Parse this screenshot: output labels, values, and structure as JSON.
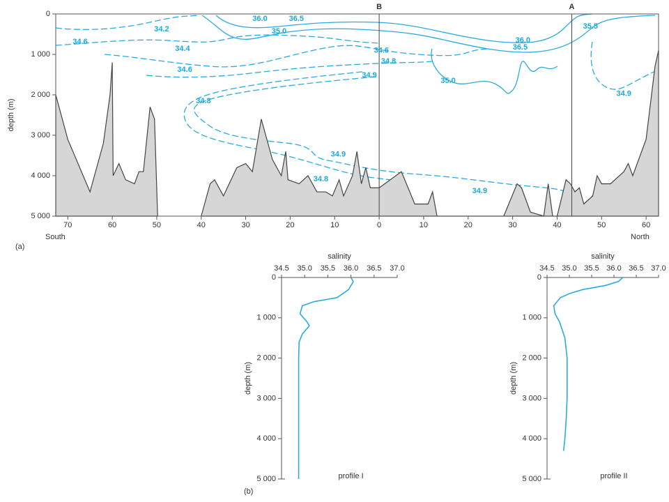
{
  "chart_data": [
    {
      "type": "section",
      "panel": "(a)",
      "ylabel": "depth (m)",
      "left_label": "South",
      "right_label": "North",
      "xlim": [
        -72.7,
        62.8
      ],
      "ylim": [
        0,
        5000
      ],
      "xticks": [
        {
          "value": -70,
          "label": "70"
        },
        {
          "value": -60,
          "label": "60"
        },
        {
          "value": -50,
          "label": "50"
        },
        {
          "value": -40,
          "label": "40"
        },
        {
          "value": -30,
          "label": "30"
        },
        {
          "value": -20,
          "label": "20"
        },
        {
          "value": -10,
          "label": "10"
        },
        0,
        10,
        20,
        30,
        40,
        50,
        60
      ],
      "yticks": [
        0,
        {
          "value": 1000,
          "label": "1 000"
        },
        {
          "value": 2000,
          "label": "2 000"
        },
        {
          "value": 3000,
          "label": "3 000"
        },
        {
          "value": 4000,
          "label": "4 000"
        },
        {
          "value": 5000,
          "label": "5 000"
        }
      ],
      "markers": [
        {
          "label": "B",
          "x": 0
        },
        {
          "label": "A",
          "x": 43.3
        }
      ],
      "contour_labels": [
        {
          "label": "34.2",
          "x": -48.9,
          "y": 380
        },
        {
          "label": "34.6",
          "x": -67.2,
          "y": 690
        },
        {
          "label": "36.0",
          "x": -26.8,
          "y": 120
        },
        {
          "label": "36.5",
          "x": -18.6,
          "y": 120
        },
        {
          "label": "35.0",
          "x": -22.5,
          "y": 430
        },
        {
          "label": "34.4",
          "x": -44.2,
          "y": 860
        },
        {
          "label": "34.6",
          "x": -43.7,
          "y": 1380
        },
        {
          "label": "34.8",
          "x": -39.5,
          "y": 2160
        },
        {
          "label": "34.6",
          "x": 0.5,
          "y": 910
        },
        {
          "label": "34.8",
          "x": 2.1,
          "y": 1170
        },
        {
          "label": "34.9",
          "x": -2.2,
          "y": 1520
        },
        {
          "label": "36.5",
          "x": 31.7,
          "y": 830
        },
        {
          "label": "36.0",
          "x": 32.3,
          "y": 660
        },
        {
          "label": "35.5",
          "x": 47.5,
          "y": 310
        },
        {
          "label": "35.0",
          "x": 15.5,
          "y": 1660
        },
        {
          "label": "34.9",
          "x": 55.0,
          "y": 1980
        },
        {
          "label": "34.9",
          "x": -9.2,
          "y": 3480
        },
        {
          "label": "34.8",
          "x": -13.1,
          "y": 4090
        },
        {
          "label": "34.9",
          "x": 22.6,
          "y": 4380
        }
      ],
      "seafloor": {
        "color": "#d6d6d6",
        "x": [
          -72.7,
          -70,
          -65,
          -62,
          -60.5,
          -60,
          -59.8,
          -58.5,
          -57,
          -55,
          -54,
          -53,
          -51.5,
          -50.5,
          -49.8,
          -45,
          -40,
          -38,
          -37,
          -35,
          -32,
          -30,
          -28.5,
          -26.5,
          -24,
          -22,
          -21,
          -20.5,
          -18,
          -16,
          -14,
          -12,
          -10.5,
          -9,
          -8,
          -6,
          -5,
          -4,
          -3,
          -2,
          0,
          5,
          8,
          11,
          12,
          13,
          20,
          28,
          31,
          32,
          34,
          37,
          38,
          39,
          40,
          42,
          43,
          44,
          45,
          46,
          48,
          49,
          50,
          52,
          55,
          56,
          57,
          60,
          62,
          62.8
        ],
        "values": [
          2000,
          3100,
          4400,
          3200,
          2000,
          1200,
          4000,
          3700,
          4100,
          4200,
          3900,
          3900,
          2300,
          2600,
          5000,
          null,
          5000,
          4200,
          4100,
          4500,
          3800,
          3700,
          3900,
          2600,
          3600,
          4000,
          3400,
          4100,
          4200,
          4000,
          4400,
          4400,
          4500,
          4100,
          4500,
          4000,
          3400,
          4200,
          3800,
          4300,
          4300,
          3900,
          4700,
          4700,
          4400,
          5000,
          5000,
          5000,
          4200,
          4300,
          4900,
          5000,
          4200,
          5000,
          5000,
          4100,
          4200,
          4400,
          4300,
          4700,
          4500,
          4000,
          4200,
          4200,
          3900,
          3700,
          4000,
          3100,
          1300,
          900
        ]
      }
    },
    {
      "type": "profile",
      "panel": "(b)",
      "xlabel": "salinity",
      "ylabel": "depth (m)",
      "label": "profile I",
      "color": "#29abe2",
      "xlim": [
        34.5,
        37.0
      ],
      "ylim": [
        0,
        5000
      ],
      "xticks": [
        34.5,
        {
          "value": 35,
          "label": "35.0"
        },
        35.5,
        {
          "value": 36,
          "label": "36.0"
        },
        36.5,
        {
          "value": 37,
          "label": "37.0"
        }
      ],
      "yticks": [
        0,
        {
          "value": 1000,
          "label": "1 000"
        },
        {
          "value": 2000,
          "label": "2 000"
        },
        {
          "value": 3000,
          "label": "3 000"
        },
        {
          "value": 4000,
          "label": "4 000"
        },
        {
          "value": 5000,
          "label": "5 000"
        }
      ],
      "x": [
        36.0,
        36.05,
        35.95,
        35.7,
        35.2,
        34.95,
        34.9,
        35.05,
        35.1,
        34.95,
        34.88,
        34.87,
        34.87,
        34.87,
        34.87
      ],
      "y": [
        0,
        100,
        300,
        500,
        600,
        700,
        900,
        1100,
        1200,
        1400,
        1600,
        2000,
        3000,
        4000,
        5000
      ]
    },
    {
      "type": "profile",
      "xlabel": "salinity",
      "ylabel": "depth (m)",
      "label": "profile II",
      "color": "#29abe2",
      "xlim": [
        34.5,
        37.0
      ],
      "ylim": [
        0,
        5000
      ],
      "xticks": [
        34.5,
        {
          "value": 35,
          "label": "35.0"
        },
        35.5,
        {
          "value": 36,
          "label": "36.0"
        },
        36.5,
        {
          "value": 37,
          "label": "37.0"
        }
      ],
      "yticks": [
        0,
        {
          "value": 1000,
          "label": "1 000"
        },
        {
          "value": 2000,
          "label": "2 000"
        },
        {
          "value": 3000,
          "label": "3 000"
        },
        {
          "value": 4000,
          "label": "4 000"
        },
        {
          "value": 5000,
          "label": "5 000"
        }
      ],
      "x": [
        36.2,
        36.1,
        35.8,
        35.3,
        35.0,
        34.8,
        34.65,
        34.68,
        34.78,
        34.9,
        34.95,
        34.95,
        34.93,
        34.9,
        34.87
      ],
      "y": [
        0,
        100,
        200,
        300,
        400,
        500,
        700,
        900,
        1100,
        1500,
        2000,
        3000,
        3500,
        4000,
        4300
      ]
    }
  ]
}
